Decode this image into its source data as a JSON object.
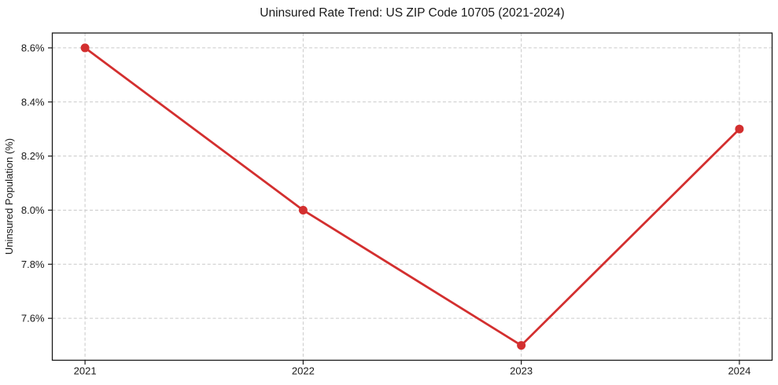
{
  "chart_data": {
    "type": "line",
    "title": "Uninsured Rate Trend: US ZIP Code 10705 (2021-2024)",
    "xlabel": "",
    "ylabel": "Uninsured Population (%)",
    "x": [
      2021,
      2022,
      2023,
      2024
    ],
    "x_tick_labels": [
      "2021",
      "2022",
      "2023",
      "2024"
    ],
    "series": [
      {
        "name": "uninsured-rate",
        "values": [
          8.6,
          8.0,
          7.5,
          8.3
        ]
      }
    ],
    "y_ticks": [
      7.6,
      7.8,
      8.0,
      8.2,
      8.4,
      8.6
    ],
    "y_tick_labels": [
      "7.6%",
      "7.8%",
      "8.0%",
      "8.2%",
      "8.4%",
      "8.6%"
    ],
    "ylim": [
      7.445,
      8.655
    ],
    "xlim": [
      2020.85,
      2024.15
    ],
    "grid": true,
    "grid_style": "dashed",
    "legend": "none",
    "colors": {
      "line": "#d32f2f",
      "marker": "#d32f2f",
      "grid": "#c9c9c9",
      "spine": "#1a1a1a",
      "text": "#1a1a1a"
    }
  }
}
